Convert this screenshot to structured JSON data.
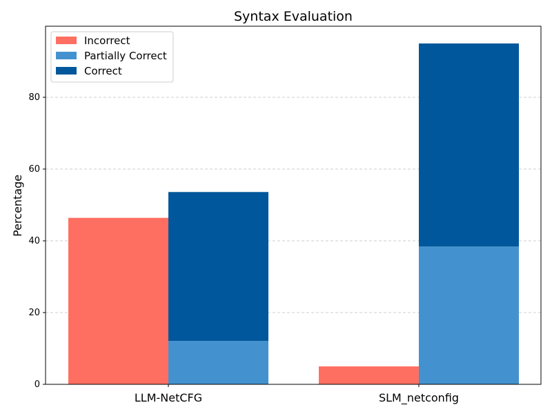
{
  "chart_data": {
    "type": "bar",
    "stacked_partial": true,
    "title": "Syntax Evaluation",
    "xlabel": "",
    "ylabel": "Percentage",
    "categories": [
      "LLM-NetCFG",
      "SLM_netconfig"
    ],
    "series": [
      {
        "name": "Incorrect",
        "values": [
          46.4,
          5.0
        ],
        "color": "#ff6f61"
      },
      {
        "name": "Partially Correct",
        "values": [
          12.1,
          38.4
        ],
        "color": "#4392cf"
      },
      {
        "name": "Correct",
        "values": [
          41.5,
          56.6
        ],
        "color": "#01579b"
      }
    ],
    "ylim": [
      0,
      100
    ],
    "yticks": [
      0,
      20,
      40,
      60,
      80
    ],
    "grid": "y-dashed",
    "legend_position": "top-left"
  }
}
